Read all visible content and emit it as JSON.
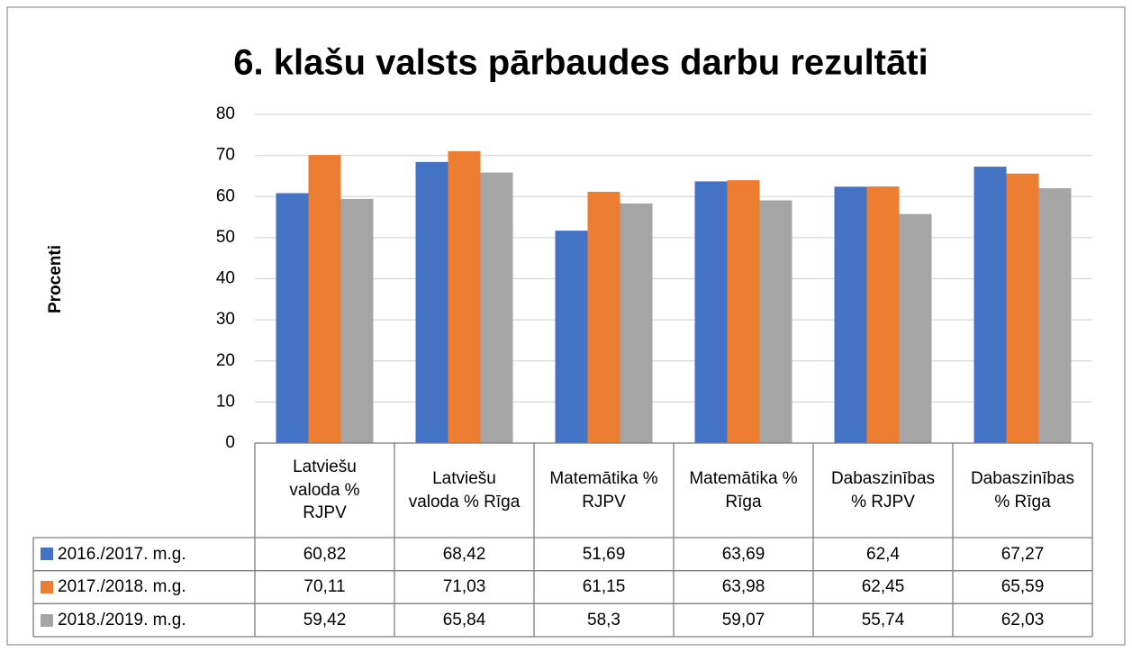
{
  "chart_data": {
    "type": "bar",
    "title": "6. klašu valsts pārbaudes darbu rezultāti",
    "y_label": "Procenti",
    "categories": [
      "Latviešu valoda % RJPV",
      "Latviešu valoda % Rīga",
      "Matemātika % RJPV",
      "Matemātika % Rīga",
      "Dabaszinības % RJPV",
      "Dabaszinības % Rīga"
    ],
    "series": [
      {
        "name": "2016./2017. m.g.",
        "color": "#4472c4",
        "values": [
          60.82,
          68.42,
          51.69,
          63.69,
          62.4,
          67.27
        ],
        "value_labels": [
          "60,82",
          "68,42",
          "51,69",
          "63,69",
          "62,4",
          "67,27"
        ]
      },
      {
        "name": "2017./2018. m.g.",
        "color": "#ed7d31",
        "values": [
          70.11,
          71.03,
          61.15,
          63.98,
          62.45,
          65.59
        ],
        "value_labels": [
          "70,11",
          "71,03",
          "61,15",
          "63,98",
          "62,45",
          "65,59"
        ]
      },
      {
        "name": "2018./2019. m.g.",
        "color": "#a5a5a5",
        "values": [
          59.42,
          65.84,
          58.3,
          59.07,
          55.74,
          62.03
        ],
        "value_labels": [
          "59,42",
          "65,84",
          "58,3",
          "59,07",
          "55,74",
          "62,03"
        ]
      }
    ],
    "ylim": [
      0,
      80
    ],
    "yticks": [
      0,
      10,
      20,
      30,
      40,
      50,
      60,
      70,
      80
    ],
    "grid": true
  }
}
